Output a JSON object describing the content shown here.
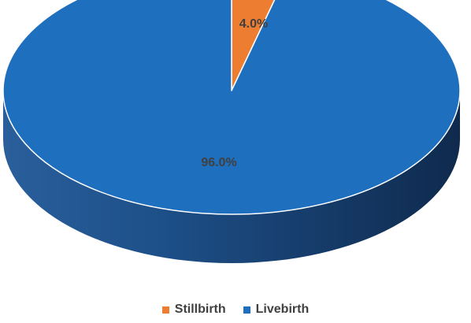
{
  "chart_data": {
    "type": "pie",
    "style": "3d",
    "categories": [
      "Stillbirth",
      "Livebirth"
    ],
    "values": [
      4.0,
      96.0
    ],
    "unit": "%",
    "data_labels": [
      "4.0%",
      "96.0%"
    ],
    "colors": [
      "#ED7D31",
      "#1F6FBF"
    ],
    "legend": {
      "placement": "bottom",
      "entries": [
        "Stillbirth",
        "Livebirth"
      ]
    }
  }
}
